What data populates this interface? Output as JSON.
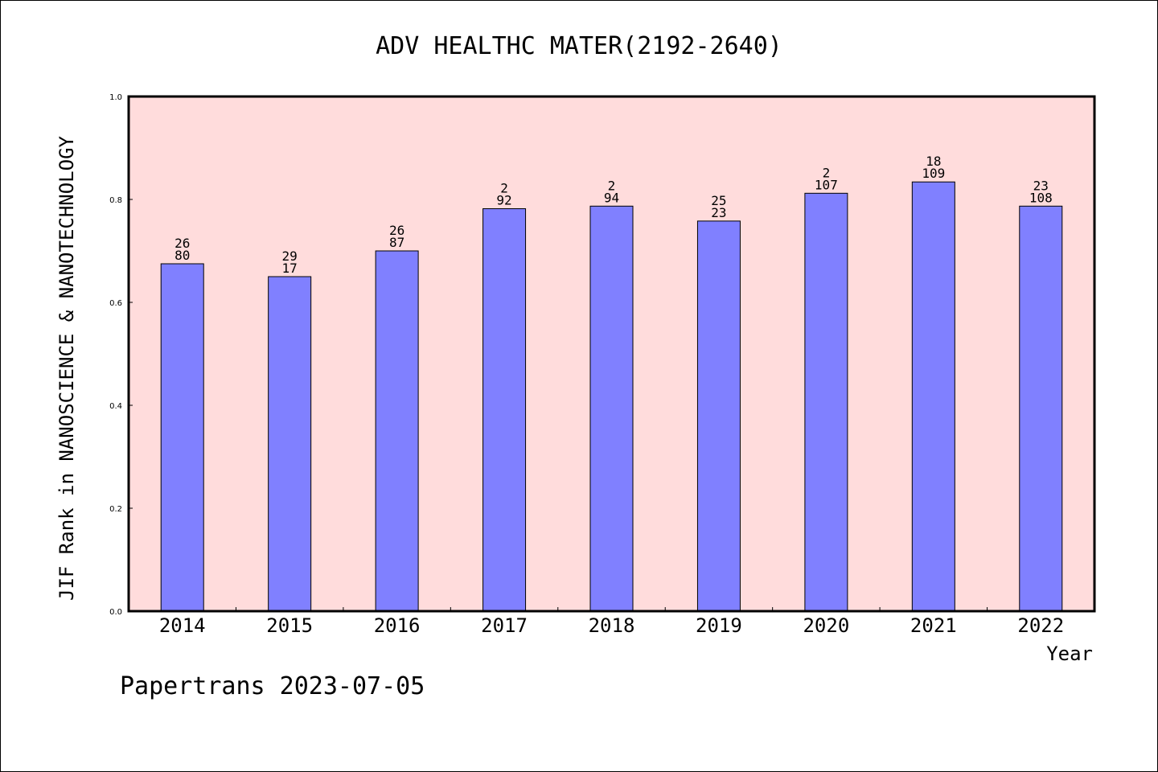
{
  "chart_data": {
    "type": "bar",
    "title": "ADV HEALTHC MATER(2192-2640)",
    "xlabel": "Year",
    "ylabel": "JIF Rank in NANOSCIENCE & NANOTECHNOLOGY",
    "ylim": [
      0,
      1.0
    ],
    "yticks": [
      "0.0",
      "0.2",
      "0.4",
      "0.6",
      "0.8",
      "1.0"
    ],
    "ytick_values": [
      0.0,
      0.2,
      0.4,
      0.6,
      0.8,
      1.0
    ],
    "grid": false,
    "categories": [
      "2014",
      "2015",
      "2016",
      "2017",
      "2018",
      "2019",
      "2020",
      "2021",
      "2022"
    ],
    "values": [
      0.675,
      0.65,
      0.7,
      0.782,
      0.787,
      0.758,
      0.812,
      0.834,
      0.787
    ],
    "labels_top": [
      "26",
      "29",
      "26",
      "2",
      "2",
      "25",
      "2",
      "18",
      "23"
    ],
    "labels_bottom": [
      "80",
      "17",
      "87",
      "92",
      "94",
      "23",
      "107",
      "109",
      "108"
    ],
    "colors": {
      "bar": "#8080ff",
      "plot_background": "#ffdcdc",
      "border": "#000000"
    }
  },
  "footer": {
    "text": "Papertrans 2023-07-05"
  }
}
